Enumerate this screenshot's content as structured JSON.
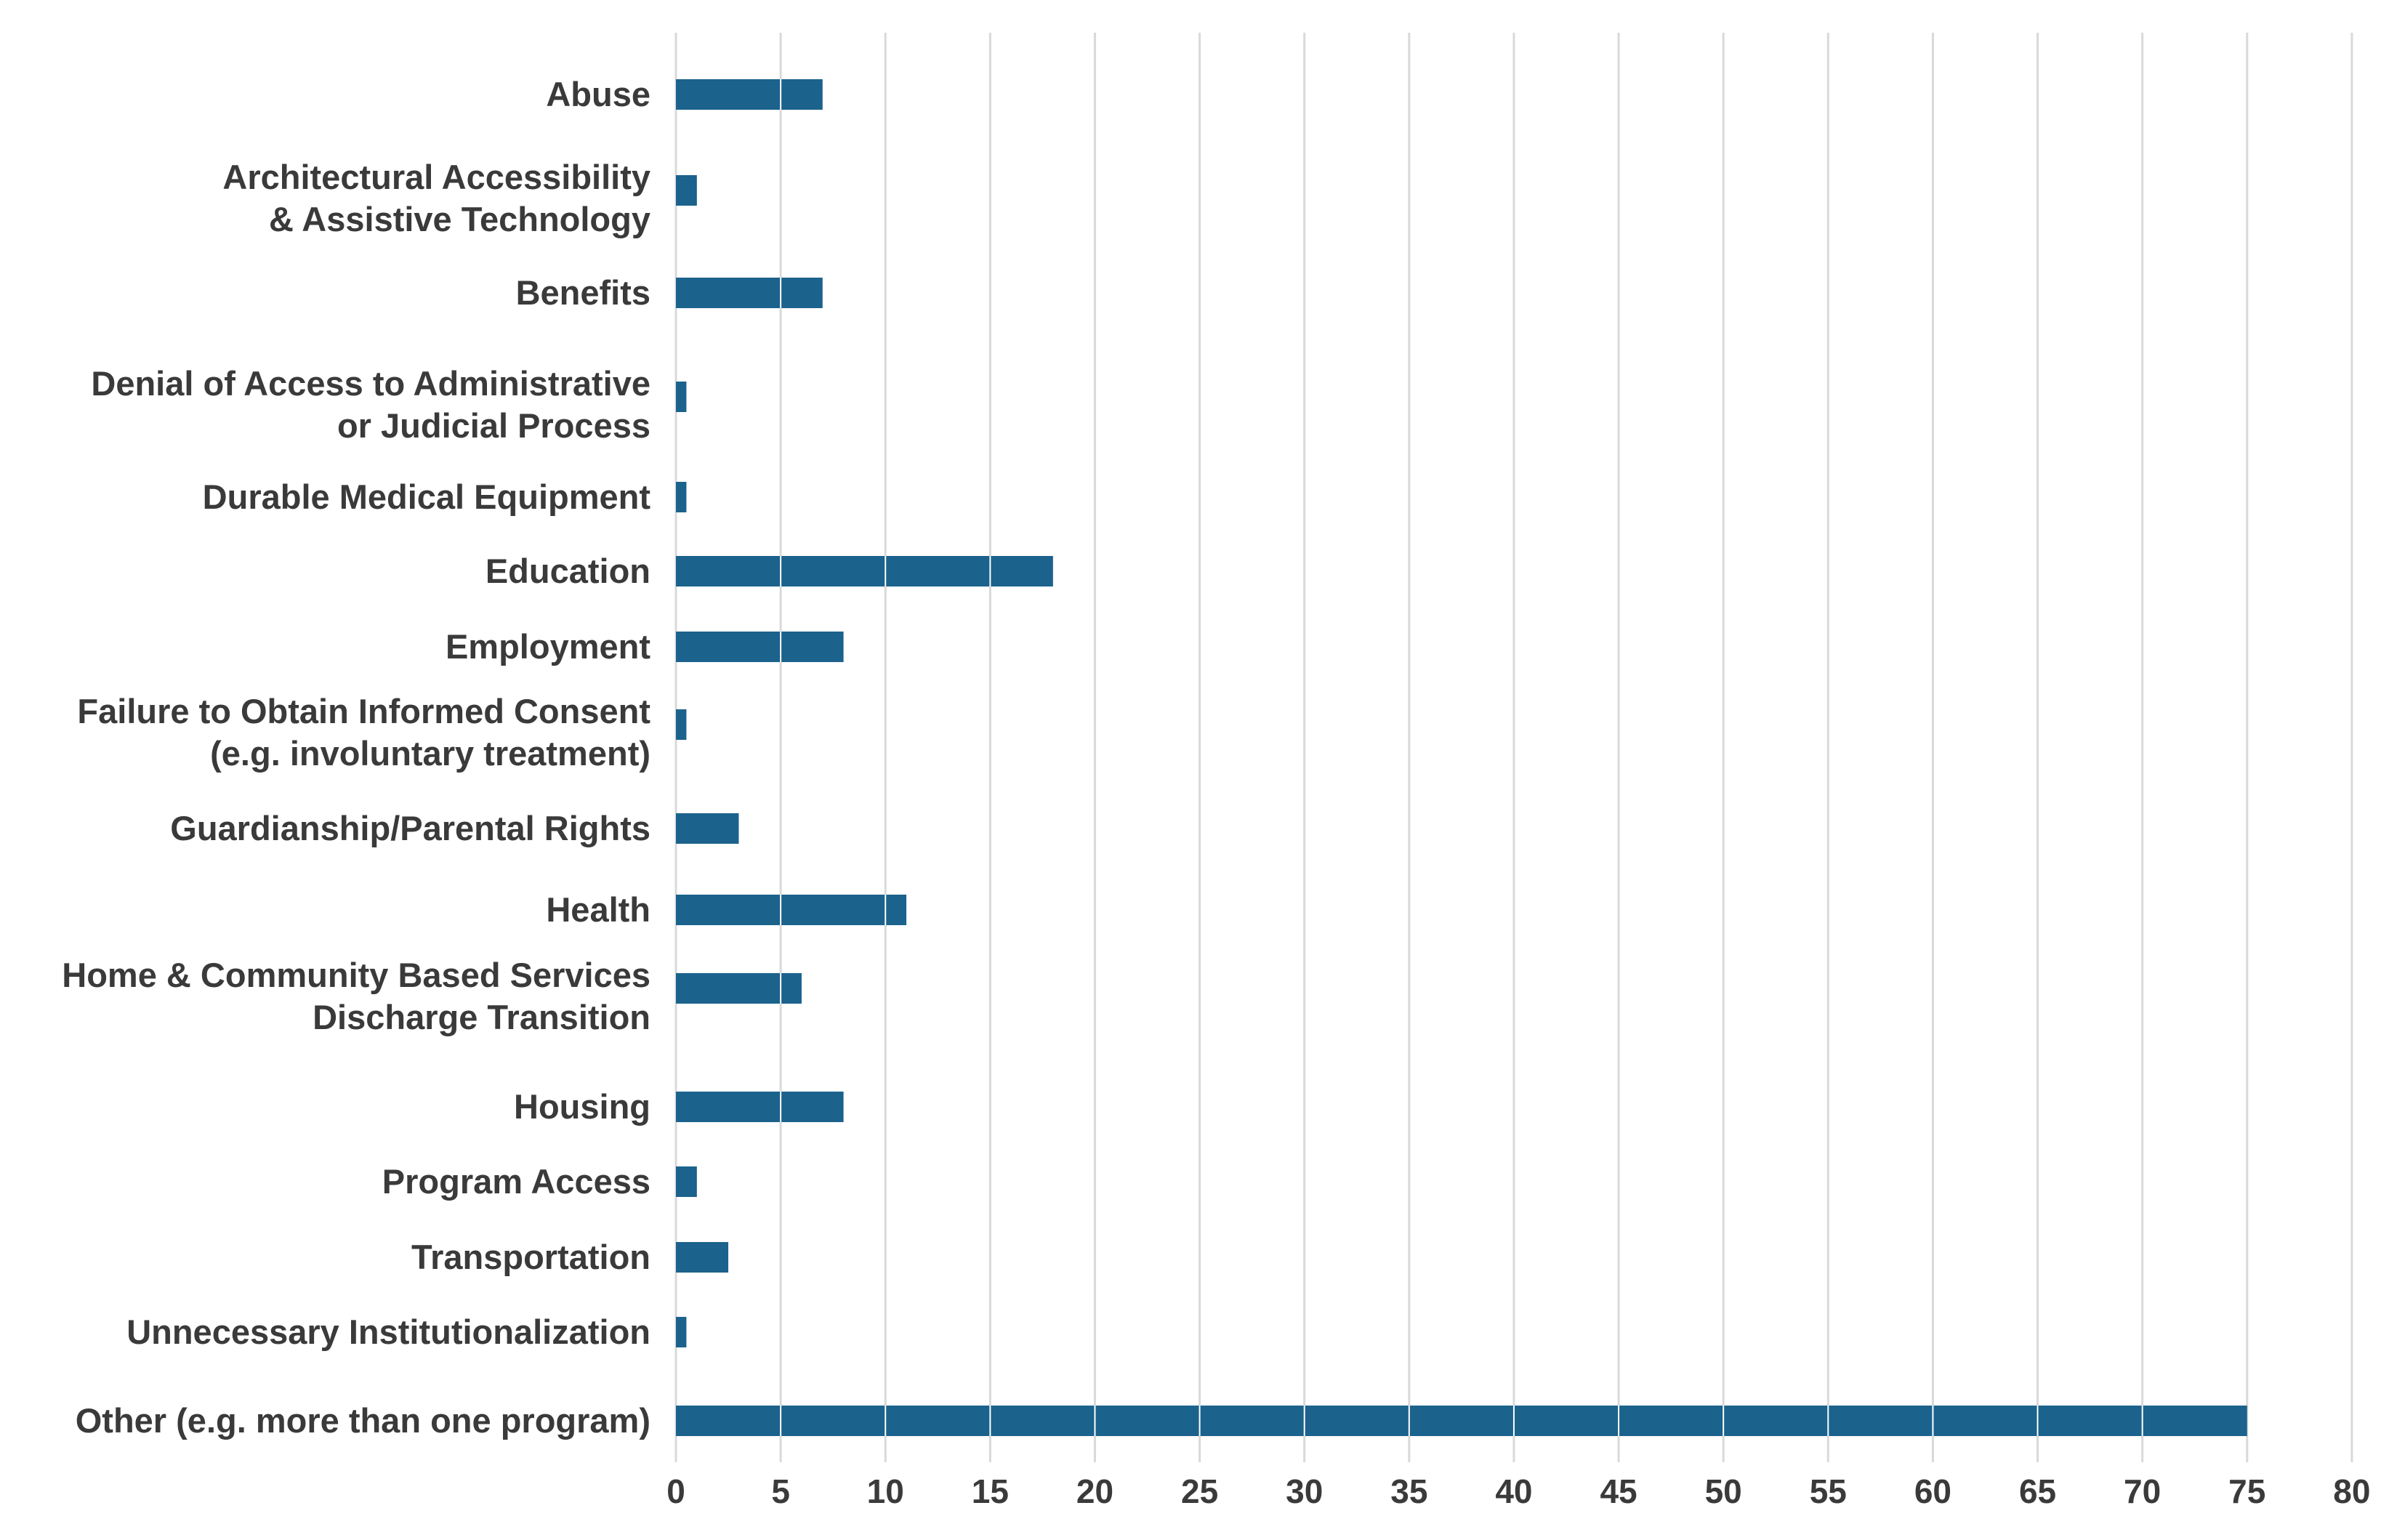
{
  "chart_data": {
    "type": "bar",
    "orientation": "horizontal",
    "title": "",
    "xlabel": "",
    "ylabel": "",
    "categories": [
      [
        "Abuse"
      ],
      [
        "Architectural Accessibility",
        "& Assistive Technology"
      ],
      [
        "Benefits"
      ],
      [
        "Denial of Access to Administrative",
        "or Judicial Process"
      ],
      [
        "Durable Medical Equipment"
      ],
      [
        "Education"
      ],
      [
        "Employment"
      ],
      [
        "Failure to Obtain Informed Consent",
        "(e.g. involuntary treatment)"
      ],
      [
        "Guardianship/Parental Rights"
      ],
      [
        "Health"
      ],
      [
        "Home & Community Based Services",
        "Discharge Transition"
      ],
      [
        "Housing"
      ],
      [
        "Program Access"
      ],
      [
        "Transportation"
      ],
      [
        "Unnecessary Institutionalization"
      ],
      [
        "Other (e.g. more than one program)"
      ]
    ],
    "values": [
      7,
      1,
      7,
      0.5,
      0.5,
      18,
      8,
      0.5,
      3,
      11,
      6,
      8,
      1,
      2.5,
      0.5,
      75
    ],
    "xlim": [
      0,
      80
    ],
    "xticks": [
      0,
      5,
      10,
      15,
      20,
      25,
      30,
      35,
      40,
      45,
      50,
      55,
      60,
      65,
      70,
      75,
      80
    ],
    "grid": true,
    "legend": "none",
    "colors": {
      "bar": "#1b628d",
      "grid": "#d9d9d9",
      "text": "#3a3a3a"
    }
  }
}
